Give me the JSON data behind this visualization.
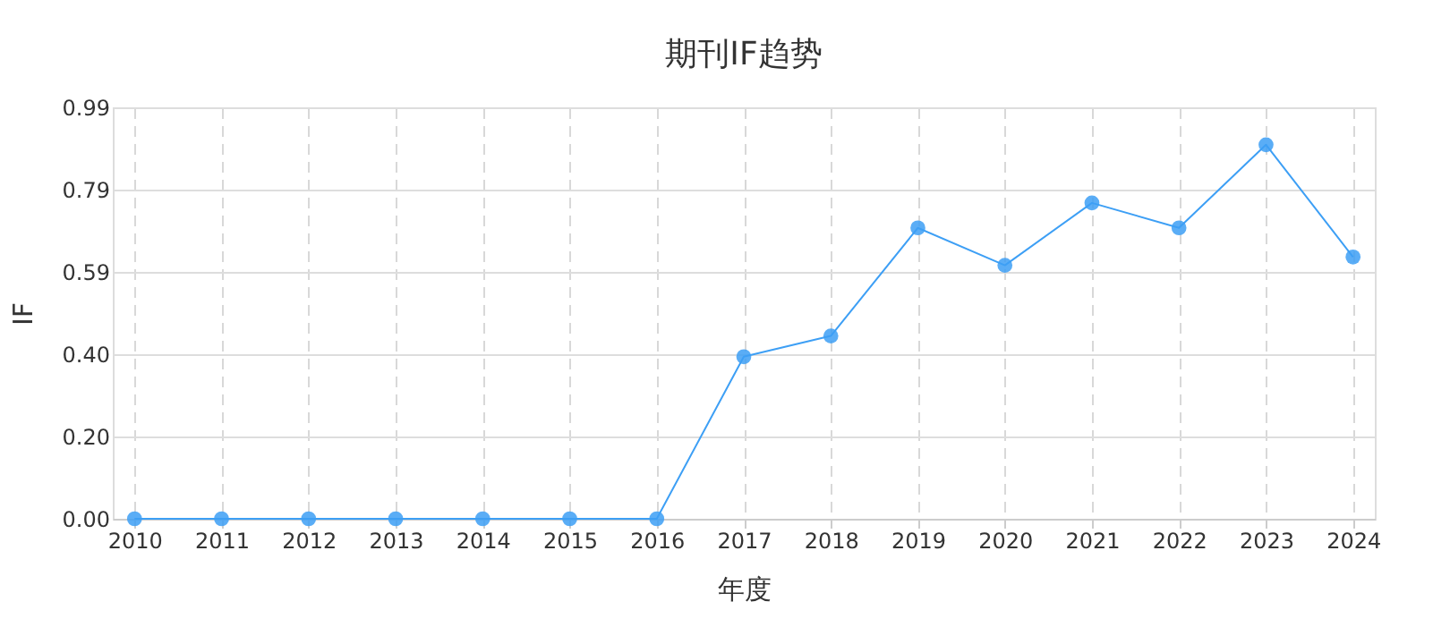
{
  "chart_data": {
    "type": "line",
    "title": "期刊IF趋势",
    "xlabel": "年度",
    "ylabel": "IF",
    "categories": [
      "2010",
      "2011",
      "2012",
      "2013",
      "2014",
      "2015",
      "2016",
      "2017",
      "2018",
      "2019",
      "2020",
      "2021",
      "2022",
      "2023",
      "2024"
    ],
    "series": [
      {
        "color": "#3d9ff5",
        "values": [
          0,
          0,
          0,
          0,
          0,
          0,
          0,
          0.39,
          0.44,
          0.7,
          0.61,
          0.76,
          0.7,
          0.9,
          0.63
        ]
      }
    ],
    "ylim": [
      0,
      0.99
    ],
    "yticks": [
      {
        "value": 0,
        "label": "0.00"
      },
      {
        "value": 0.198,
        "label": "0.20"
      },
      {
        "value": 0.396,
        "label": "0.40"
      },
      {
        "value": 0.594,
        "label": "0.59"
      },
      {
        "value": 0.792,
        "label": "0.79"
      },
      {
        "value": 0.99,
        "label": "0.99"
      }
    ],
    "grid": true,
    "marker": "circle",
    "line_style": "solid"
  }
}
